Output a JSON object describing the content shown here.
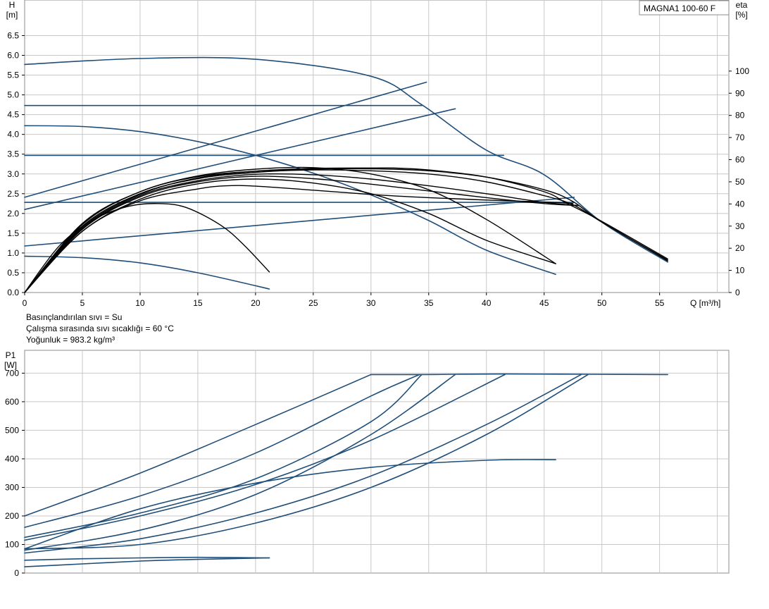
{
  "info_lines": [
    "Basınçlandırılan sıvı = Su",
    "Çalışma sırasında sıvı sıcaklığı = 60 °C",
    "Yoğunluk = 983.2 kg/m³"
  ],
  "colors": {
    "blue": "#1f4e79",
    "black": "#000000",
    "grid": "#c8c8c8",
    "frame": "#8c8c8c"
  },
  "chart_data": [
    {
      "type": "line",
      "title": "MAGNA1 100-60 F",
      "ylabel": "H",
      "yunit": "[m]",
      "y2label": "eta",
      "y2unit": "[%]",
      "xlabel": "Q [m³/h]",
      "xlim": [
        0,
        61
      ],
      "ylim": [
        0,
        7.4
      ],
      "y2lim": [
        0,
        132.1
      ],
      "x_ticks": [
        0,
        5,
        10,
        15,
        20,
        25,
        30,
        35,
        40,
        45,
        50,
        55
      ],
      "y_ticks": [
        0.0,
        0.5,
        1.0,
        1.5,
        2.0,
        2.5,
        3.0,
        3.5,
        4.0,
        4.5,
        5.0,
        5.5,
        6.0,
        6.5
      ],
      "y_tick_labels": [
        "0.0",
        "0.5",
        "1.0",
        "1.5",
        "2.0",
        "2.5",
        "3.0",
        "3.5",
        "4.0",
        "4.5",
        "5.0",
        "5.5",
        "6.0",
        "6.5"
      ],
      "y2_ticks": [
        0,
        10,
        20,
        30,
        40,
        50,
        60,
        70,
        80,
        90,
        100
      ],
      "x_grid": [
        0,
        5,
        10,
        15,
        20,
        25,
        30,
        35,
        40,
        45,
        50,
        55,
        60
      ],
      "grid": true,
      "series": [
        {
          "color": "blue",
          "axis": "y",
          "x": [
            0,
            10,
            20,
            30,
            34.4,
            40,
            45,
            50,
            55.7
          ],
          "y": [
            5.77,
            5.92,
            5.9,
            5.47,
            4.75,
            3.6,
            2.98,
            1.78,
            0.77
          ]
        },
        {
          "color": "blue",
          "axis": "y",
          "x": [
            0,
            34.4
          ],
          "y": [
            4.73,
            4.73
          ]
        },
        {
          "color": "blue",
          "axis": "y",
          "x": [
            0,
            41.5
          ],
          "y": [
            3.47,
            3.47
          ]
        },
        {
          "color": "blue",
          "axis": "y",
          "x": [
            0,
            47.6
          ],
          "y": [
            2.28,
            2.28
          ]
        },
        {
          "color": "blue",
          "axis": "y",
          "x": [
            0,
            5,
            10,
            15,
            20,
            25,
            30,
            35,
            40,
            46
          ],
          "y": [
            4.22,
            4.2,
            4.07,
            3.82,
            3.47,
            3.02,
            2.47,
            1.82,
            1.07,
            0.46
          ]
        },
        {
          "color": "blue",
          "axis": "y",
          "x": [
            0,
            5,
            10,
            15,
            21.2
          ],
          "y": [
            0.92,
            0.88,
            0.75,
            0.5,
            0.09
          ]
        },
        {
          "color": "blue",
          "axis": "y2",
          "x": [
            0,
            34.8
          ],
          "y": [
            43,
            95
          ]
        },
        {
          "color": "blue",
          "axis": "y2",
          "x": [
            0,
            37.3
          ],
          "y": [
            37.5,
            83
          ]
        },
        {
          "color": "blue",
          "axis": "y2",
          "x": [
            0,
            47.6
          ],
          "y": [
            21,
            43
          ]
        },
        {
          "color": "black",
          "axis": "y",
          "x": [
            0,
            5,
            10,
            15,
            20,
            25,
            30,
            35,
            40,
            45,
            47.5,
            50,
            55.7
          ],
          "y": [
            0,
            1.72,
            2.55,
            2.93,
            3.07,
            3.12,
            3.13,
            3.08,
            2.92,
            2.6,
            2.3,
            1.78,
            0.82
          ]
        },
        {
          "color": "black",
          "axis": "y",
          "x": [
            0,
            5,
            10,
            15,
            20,
            25,
            30,
            32,
            35,
            40,
            45,
            47,
            50,
            55.7
          ],
          "y": [
            0,
            1.65,
            2.48,
            2.9,
            3.07,
            3.14,
            3.15,
            3.15,
            3.1,
            2.92,
            2.55,
            2.25,
            1.8,
            0.85
          ]
        },
        {
          "color": "black",
          "axis": "y",
          "x": [
            0,
            5,
            10,
            15,
            20,
            25,
            30,
            35,
            40,
            45,
            47.5,
            50,
            55.7
          ],
          "y": [
            0,
            1.68,
            2.5,
            2.88,
            3.04,
            3.1,
            3.08,
            3.0,
            2.8,
            2.45,
            2.22,
            1.78,
            0.8
          ]
        },
        {
          "color": "black",
          "axis": "y",
          "x": [
            0,
            5,
            10,
            15,
            20,
            25,
            30,
            35,
            40,
            45,
            48
          ],
          "y": [
            0,
            1.62,
            2.45,
            2.83,
            2.99,
            2.98,
            2.87,
            2.7,
            2.5,
            2.28,
            2.2
          ]
        },
        {
          "color": "black",
          "axis": "y",
          "x": [
            0,
            5,
            10,
            15,
            20,
            25,
            30,
            35,
            40,
            45,
            48
          ],
          "y": [
            0,
            1.6,
            2.42,
            2.8,
            2.94,
            2.88,
            2.74,
            2.57,
            2.4,
            2.25,
            2.2
          ]
        },
        {
          "color": "black",
          "axis": "y",
          "x": [
            0,
            5,
            10,
            15,
            20,
            25,
            30,
            35,
            40,
            46
          ],
          "y": [
            0,
            1.75,
            2.55,
            2.95,
            3.12,
            3.16,
            3.0,
            2.6,
            1.85,
            0.73
          ]
        },
        {
          "color": "black",
          "axis": "y",
          "x": [
            0,
            5,
            10,
            15,
            20,
            25,
            30,
            35,
            40,
            46
          ],
          "y": [
            0,
            1.55,
            2.36,
            2.75,
            2.87,
            2.77,
            2.5,
            2.0,
            1.32,
            0.73
          ]
        },
        {
          "color": "black",
          "axis": "y",
          "x": [
            0,
            5,
            10,
            15,
            17.5,
            20,
            25,
            30,
            35,
            40,
            45,
            47.5
          ],
          "y": [
            0,
            1.55,
            2.32,
            2.62,
            2.7,
            2.69,
            2.59,
            2.48,
            2.4,
            2.34,
            2.29,
            2.25
          ]
        },
        {
          "color": "black",
          "axis": "y",
          "x": [
            0,
            3,
            6,
            9,
            11.5,
            14,
            17,
            19,
            21.2
          ],
          "y": [
            0,
            1.18,
            1.85,
            2.18,
            2.25,
            2.15,
            1.7,
            1.2,
            0.52
          ]
        }
      ]
    },
    {
      "type": "line",
      "ylabel": "P1",
      "yunit": "[W]",
      "xlim": [
        0,
        61
      ],
      "ylim": [
        0,
        780
      ],
      "y_ticks": [
        0,
        100,
        200,
        300,
        400,
        500,
        600,
        700
      ],
      "y_tick_labels": [
        "0",
        "100",
        "200",
        "300",
        "400",
        "500",
        "600",
        "700"
      ],
      "x_grid": [
        0,
        5,
        10,
        15,
        20,
        25,
        30,
        35,
        40,
        45,
        50,
        55,
        60
      ],
      "grid": true,
      "series": [
        {
          "color": "blue",
          "x": [
            0,
            10,
            20,
            30
          ],
          "y": [
            200,
            350,
            520,
            695
          ]
        },
        {
          "color": "blue",
          "x": [
            0,
            10,
            20,
            30,
            34.2
          ],
          "y": [
            160,
            270,
            420,
            620,
            695
          ]
        },
        {
          "color": "blue",
          "x": [
            0,
            10,
            20,
            30,
            34.4
          ],
          "y": [
            125,
            210,
            330,
            530,
            695
          ]
        },
        {
          "color": "blue",
          "x": [
            0,
            10,
            20,
            30,
            37.3
          ],
          "y": [
            80,
            150,
            275,
            485,
            695
          ]
        },
        {
          "color": "blue",
          "x": [
            0,
            10,
            20,
            30,
            41.6
          ],
          "y": [
            115,
            200,
            310,
            465,
            695
          ]
        },
        {
          "color": "blue",
          "x": [
            0,
            10,
            20,
            30,
            40,
            48.2
          ],
          "y": [
            70,
            120,
            210,
            340,
            520,
            695
          ]
        },
        {
          "color": "blue",
          "x": [
            0,
            10,
            20,
            30,
            40,
            48.8
          ],
          "y": [
            85,
            100,
            175,
            300,
            485,
            695
          ]
        },
        {
          "color": "blue",
          "x": [
            0,
            10,
            20,
            30,
            40,
            46
          ],
          "y": [
            85,
            225,
            315,
            370,
            395,
            397
          ]
        },
        {
          "color": "blue",
          "x": [
            0,
            5,
            10,
            15,
            21.2
          ],
          "y": [
            45,
            50,
            53,
            55,
            53
          ]
        },
        {
          "color": "blue",
          "x": [
            0,
            5,
            10,
            15,
            21.2
          ],
          "y": [
            22,
            32,
            42,
            48,
            53
          ]
        },
        {
          "color": "blue",
          "x": [
            30,
            34.2,
            37.3,
            41.6,
            48.8,
            55.7
          ],
          "y": [
            695,
            695,
            696,
            697,
            696,
            695
          ]
        }
      ]
    }
  ]
}
